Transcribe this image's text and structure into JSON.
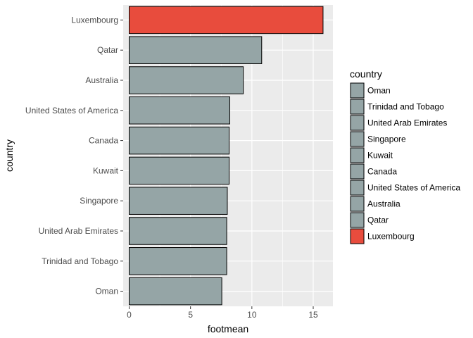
{
  "chart_data": {
    "type": "bar",
    "orientation": "horizontal",
    "xlabel": "footmean",
    "ylabel": "country",
    "xlim": [
      0,
      16.5
    ],
    "xticks": [
      0,
      5,
      10,
      15
    ],
    "categories": [
      "Luxembourg",
      "Qatar",
      "Australia",
      "United States of America",
      "Canada",
      "Kuwait",
      "Singapore",
      "United Arab Emirates",
      "Trinidad and Tobago",
      "Oman"
    ],
    "values": [
      15.8,
      10.8,
      9.3,
      8.2,
      8.15,
      8.15,
      8.0,
      7.95,
      7.95,
      7.55
    ],
    "colors": [
      "#e84c3d",
      "#95a5a6",
      "#95a5a6",
      "#95a5a6",
      "#95a5a6",
      "#95a5a6",
      "#95a5a6",
      "#95a5a6",
      "#95a5a6",
      "#95a5a6"
    ],
    "grid": true,
    "legend": {
      "title": "country",
      "placement": "right",
      "entries": [
        "Oman",
        "Trinidad and Tobago",
        "United Arab Emirates",
        "Singapore",
        "Kuwait",
        "Canada",
        "United States of America",
        "Australia",
        "Qatar",
        "Luxembourg"
      ],
      "colors": [
        "#95a5a6",
        "#95a5a6",
        "#95a5a6",
        "#95a5a6",
        "#95a5a6",
        "#95a5a6",
        "#95a5a6",
        "#95a5a6",
        "#95a5a6",
        "#e84c3d"
      ]
    },
    "panel_background": "#ebebeb",
    "grid_color": "#ffffff"
  }
}
